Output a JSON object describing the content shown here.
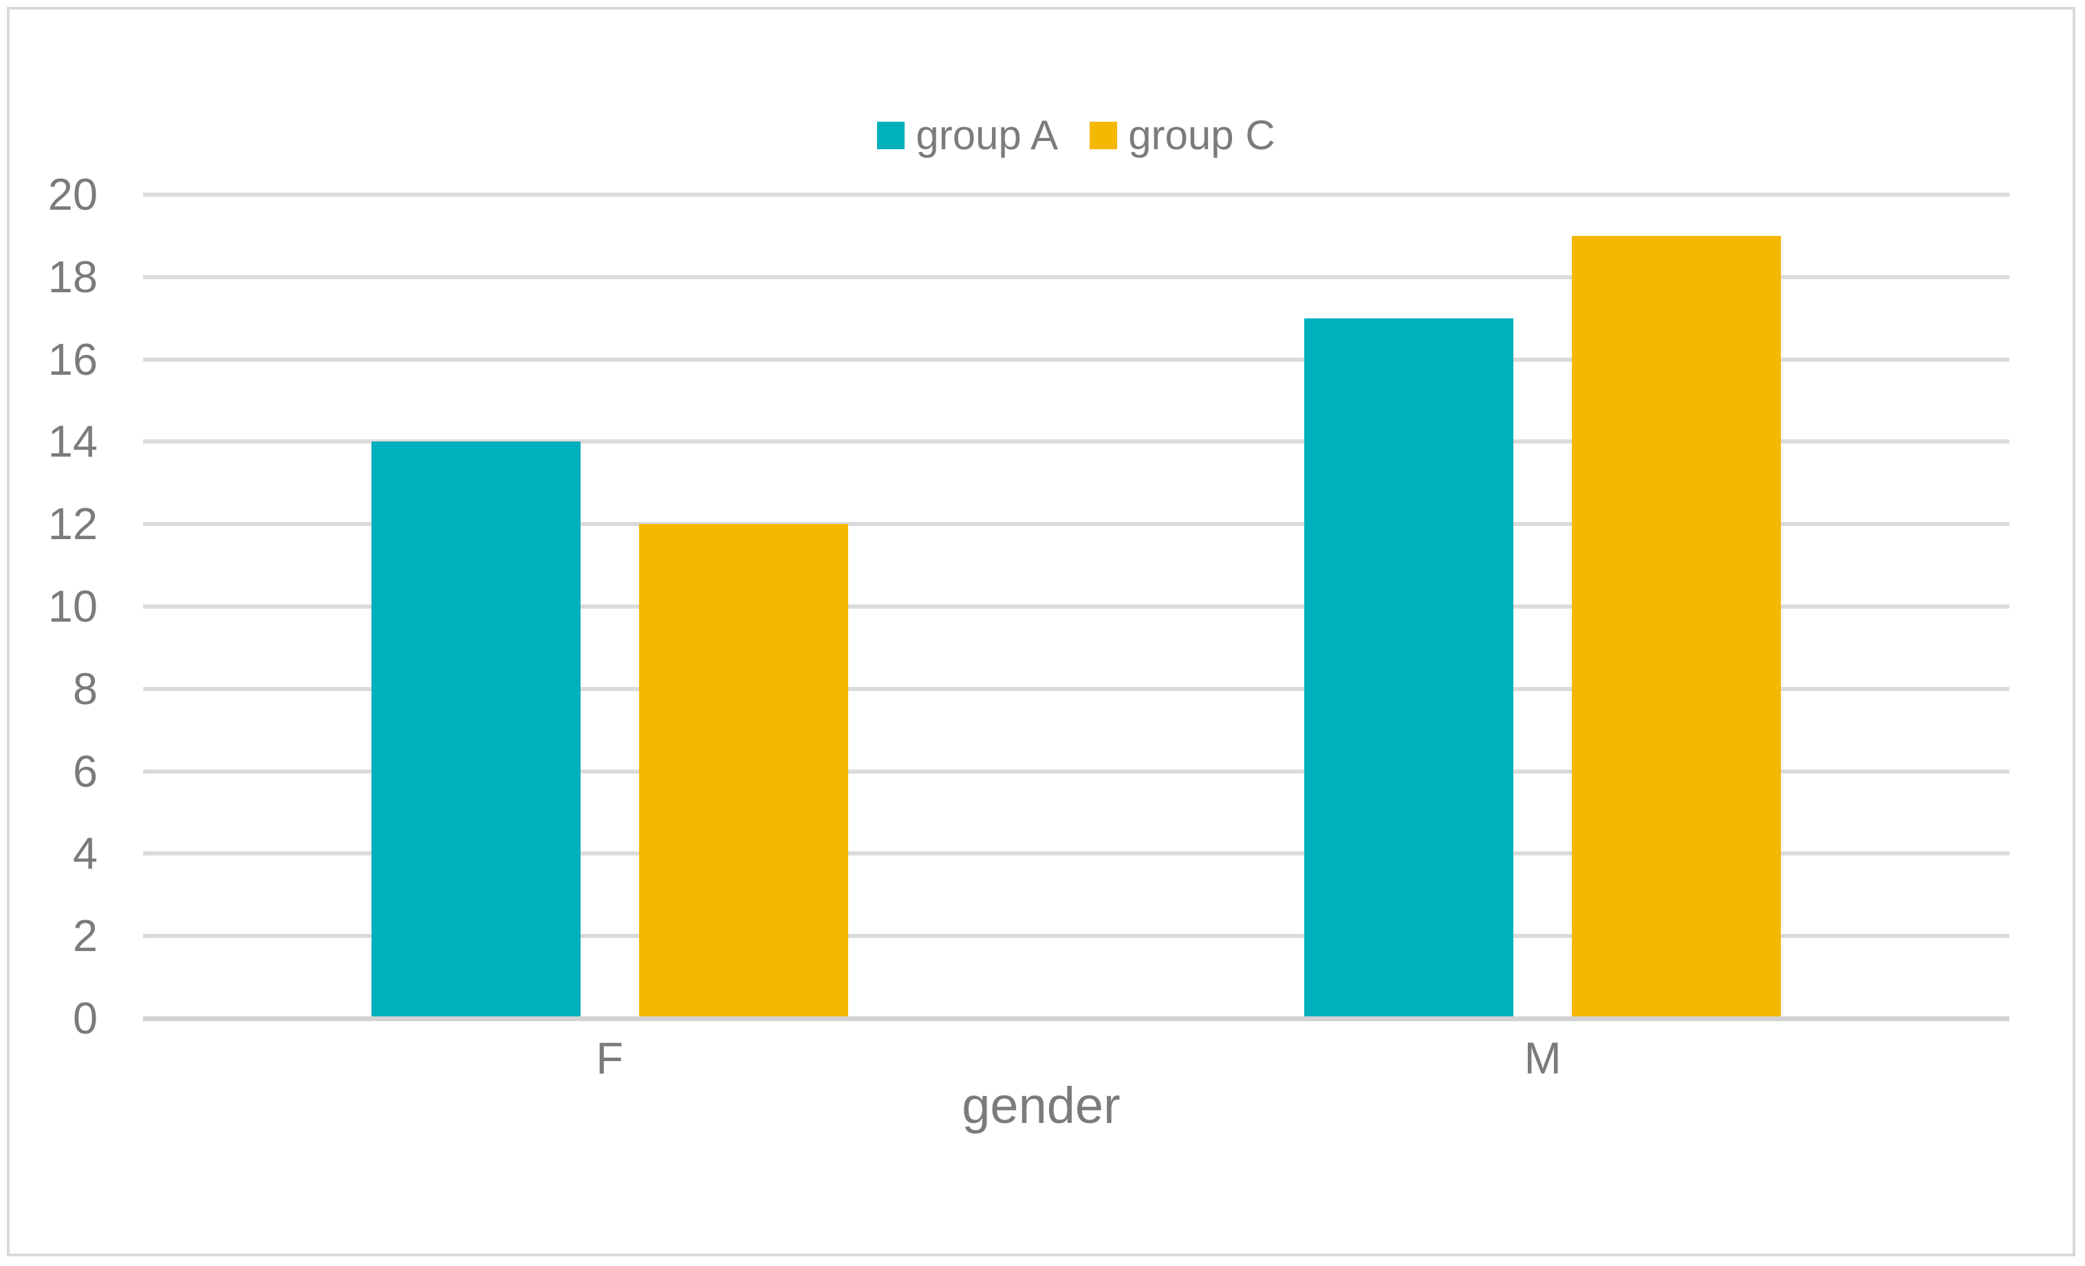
{
  "chart_data": {
    "type": "bar",
    "categories": [
      "F",
      "M"
    ],
    "series": [
      {
        "name": "group A",
        "color": "#00B0BC",
        "values": [
          14,
          17
        ]
      },
      {
        "name": "group C",
        "color": "#F5B800",
        "values": [
          12,
          19
        ]
      }
    ],
    "xlabel": "gender",
    "ylabel": "",
    "ylim": [
      0,
      20
    ],
    "ytick_step": 2,
    "yticks": [
      0,
      2,
      4,
      6,
      8,
      10,
      12,
      14,
      16,
      18,
      20
    ],
    "grid": "horizontal",
    "legend_position": "top-center"
  },
  "colors": {
    "series_group_a": "#00B0BC",
    "series_group_c": "#F5B800",
    "gridline": "#DBDBDB",
    "axis_line": "#D2D2D2",
    "label_text": "#7B7B7B",
    "frame_border": "#D9D9D9",
    "background": "#FFFFFF"
  }
}
